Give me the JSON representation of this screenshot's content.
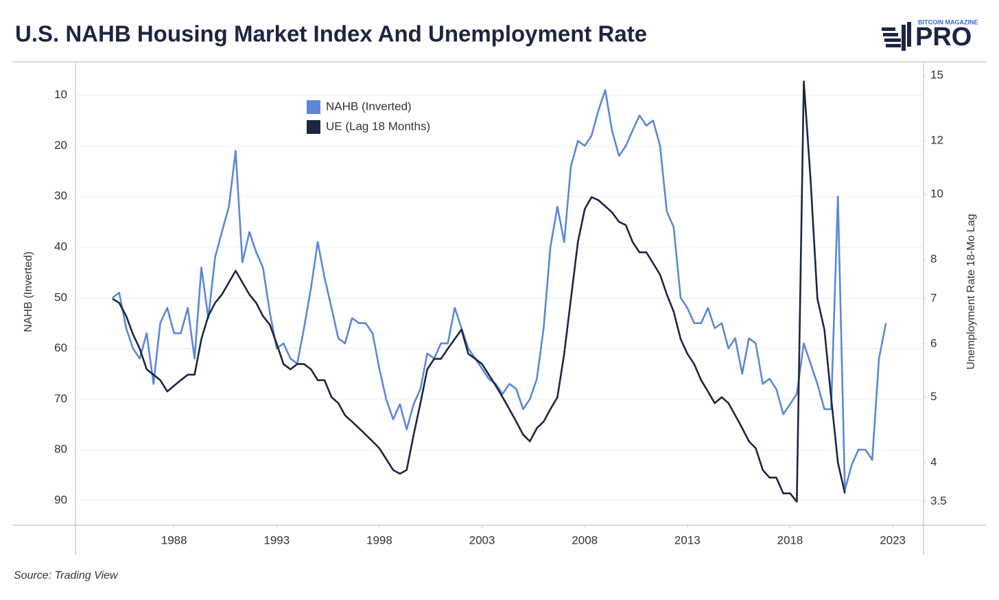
{
  "chart_data": {
    "type": "line",
    "title": "U.S. NAHB Housing Market Index And Unemployment Rate",
    "source": "Source: Trading View",
    "logo": {
      "top": "BITCOIN MAGAZINE",
      "main": "PRO"
    },
    "y_label": "NAHB (Inverted)",
    "y2_label": "Unemployment Rate 18-Mo Lag",
    "xlim": [
      1983.2,
      2024.5
    ],
    "xticks": [
      1988,
      1993,
      1998,
      2003,
      2008,
      2013,
      2018,
      2023
    ],
    "ylim": [
      94.9,
      3.4
    ],
    "yticks": [
      10,
      20,
      30,
      40,
      50,
      60,
      70,
      80,
      90
    ],
    "y2lim": [
      3.23,
      15.72
    ],
    "y2scale": "log",
    "y2ticks": [
      3.5,
      4,
      5,
      6,
      7,
      8,
      10,
      12,
      15
    ],
    "grid": true,
    "series": [
      {
        "name": "NAHB (Inverted)",
        "color": "#5b87d6",
        "x": [
          1985,
          1985.33,
          1985.67,
          1986,
          1986.33,
          1986.67,
          1987,
          1987.33,
          1987.67,
          1988,
          1988.33,
          1988.67,
          1989,
          1989.33,
          1989.67,
          1990,
          1990.33,
          1990.67,
          1991,
          1991.33,
          1991.67,
          1992,
          1992.33,
          1992.67,
          1993,
          1993.33,
          1993.67,
          1994,
          1994.33,
          1994.67,
          1995,
          1995.33,
          1995.67,
          1996,
          1996.33,
          1996.67,
          1997,
          1997.33,
          1997.67,
          1998,
          1998.33,
          1998.67,
          1999,
          1999.33,
          1999.67,
          2000,
          2000.33,
          2000.67,
          2001,
          2001.33,
          2001.67,
          2002,
          2002.33,
          2002.67,
          2003,
          2003.33,
          2003.67,
          2004,
          2004.33,
          2004.67,
          2005,
          2005.33,
          2005.67,
          2006,
          2006.33,
          2006.67,
          2007,
          2007.33,
          2007.67,
          2008,
          2008.33,
          2008.67,
          2009,
          2009.33,
          2009.67,
          2010,
          2010.33,
          2010.67,
          2011,
          2011.33,
          2011.67,
          2012,
          2012.33,
          2012.67,
          2013,
          2013.33,
          2013.67,
          2014,
          2014.33,
          2014.67,
          2015,
          2015.33,
          2015.67,
          2016,
          2016.33,
          2016.67,
          2017,
          2017.33,
          2017.67,
          2018,
          2018.33,
          2018.67,
          2019,
          2019.33,
          2019.67,
          2020,
          2020.33,
          2020.67,
          2021,
          2021.33,
          2021.67,
          2022,
          2022.33,
          2022.67
        ],
        "values": [
          50,
          49,
          56,
          60,
          62,
          57,
          67,
          55,
          52,
          57,
          57,
          52,
          62,
          44,
          54,
          42,
          37,
          32,
          21,
          43,
          37,
          41,
          44,
          53,
          60,
          59,
          62,
          63,
          56,
          48,
          39,
          46,
          52,
          58,
          59,
          54,
          55,
          55,
          57,
          64,
          70,
          74,
          71,
          76,
          71,
          68,
          61,
          62,
          59,
          59,
          52,
          56,
          60,
          62,
          64,
          66,
          67,
          69,
          67,
          68,
          72,
          70,
          66,
          56,
          40,
          32,
          39,
          24,
          19,
          20,
          18,
          13,
          9,
          17,
          22,
          20,
          17,
          14,
          16,
          15,
          20,
          33,
          36,
          50,
          52,
          55,
          55,
          52,
          56,
          55,
          60,
          58,
          65,
          58,
          59,
          67,
          66,
          68,
          73,
          71,
          69,
          59,
          63,
          67,
          72,
          72,
          30,
          88,
          83,
          80,
          80,
          82,
          62,
          55
        ]
      },
      {
        "name": "UE (Lag 18 Months)",
        "color": "#1c2541",
        "axis": "y2",
        "x": [
          1985,
          1985.33,
          1985.67,
          1986,
          1986.33,
          1986.67,
          1987,
          1987.33,
          1987.67,
          1988,
          1988.33,
          1988.67,
          1989,
          1989.33,
          1989.67,
          1990,
          1990.33,
          1990.67,
          1991,
          1991.33,
          1991.67,
          1992,
          1992.33,
          1992.67,
          1993,
          1993.33,
          1993.67,
          1994,
          1994.33,
          1994.67,
          1995,
          1995.33,
          1995.67,
          1996,
          1996.33,
          1996.67,
          1997,
          1997.33,
          1997.67,
          1998,
          1998.33,
          1998.67,
          1999,
          1999.33,
          1999.67,
          2000,
          2000.33,
          2000.67,
          2001,
          2001.33,
          2001.67,
          2002,
          2002.33,
          2002.67,
          2003,
          2003.33,
          2003.67,
          2004,
          2004.33,
          2004.67,
          2005,
          2005.33,
          2005.67,
          2006,
          2006.33,
          2006.67,
          2007,
          2007.33,
          2007.67,
          2008,
          2008.33,
          2008.67,
          2009,
          2009.33,
          2009.67,
          2010,
          2010.33,
          2010.67,
          2011,
          2011.33,
          2011.67,
          2012,
          2012.33,
          2012.67,
          2013,
          2013.33,
          2013.67,
          2014,
          2014.33,
          2014.67,
          2015,
          2015.33,
          2015.67,
          2016,
          2016.33,
          2016.67,
          2017,
          2017.33,
          2017.67,
          2018,
          2018.33,
          2018.67,
          2019,
          2019.33,
          2019.67,
          2020,
          2020.33,
          2020.67
        ],
        "values": [
          7.0,
          6.9,
          6.6,
          6.2,
          5.9,
          5.5,
          5.4,
          5.3,
          5.1,
          5.2,
          5.3,
          5.4,
          5.4,
          6.1,
          6.6,
          6.9,
          7.1,
          7.4,
          7.7,
          7.4,
          7.1,
          6.9,
          6.6,
          6.4,
          6.0,
          5.6,
          5.5,
          5.6,
          5.6,
          5.5,
          5.3,
          5.3,
          5.0,
          4.9,
          4.7,
          4.6,
          4.5,
          4.4,
          4.3,
          4.2,
          4.05,
          3.9,
          3.85,
          3.9,
          4.4,
          4.9,
          5.5,
          5.7,
          5.7,
          5.9,
          6.1,
          6.3,
          5.8,
          5.7,
          5.6,
          5.4,
          5.2,
          5.0,
          4.8,
          4.6,
          4.4,
          4.3,
          4.5,
          4.6,
          4.8,
          5.0,
          5.8,
          7.0,
          8.5,
          9.5,
          9.9,
          9.8,
          9.6,
          9.4,
          9.1,
          9.0,
          8.5,
          8.2,
          8.2,
          7.9,
          7.6,
          7.1,
          6.7,
          6.1,
          5.8,
          5.6,
          5.3,
          5.1,
          4.9,
          5.0,
          4.9,
          4.7,
          4.5,
          4.3,
          4.2,
          3.9,
          3.8,
          3.8,
          3.6,
          3.6,
          3.5,
          14.7,
          10.5,
          7.0,
          6.3,
          5.0,
          4.0,
          3.6
        ]
      }
    ]
  }
}
